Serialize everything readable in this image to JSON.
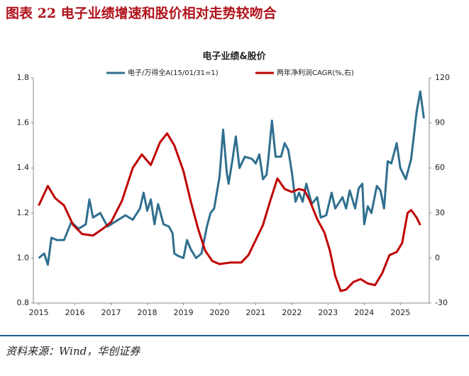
{
  "header": {
    "title": "图表 22   电子业绩增速和股价相对走势较吻合"
  },
  "source": "资料来源：Wind，华创证券",
  "chart_data": {
    "type": "line",
    "title": "电子业绩&股价",
    "xlim": [
      2014.85,
      2025.8
    ],
    "xticks": [
      2015,
      2016,
      2017,
      2018,
      2019,
      2020,
      2021,
      2022,
      2023,
      2024,
      2025
    ],
    "ylim": [
      0.8,
      1.8
    ],
    "yticks": [
      0.8,
      {
        "value": 1,
        "label": "1.0"
      },
      1.2,
      1.4,
      1.6,
      1.8
    ],
    "y2lim": [
      -30,
      120
    ],
    "y2ticks": [
      -30,
      0,
      30,
      60,
      90,
      120
    ],
    "grid": false,
    "series": [
      {
        "name": "电子/万得全A(15/01/31=1)",
        "color": "#2f6f8f",
        "x": [
          2015.0,
          2015.15,
          2015.25,
          2015.35,
          2015.5,
          2015.7,
          2015.9,
          2016.1,
          2016.3,
          2016.4,
          2016.5,
          2016.7,
          2016.9,
          2017.0,
          2017.2,
          2017.4,
          2017.6,
          2017.8,
          2017.9,
          2018.0,
          2018.1,
          2018.2,
          2018.3,
          2018.45,
          2018.6,
          2018.7,
          2018.75,
          2018.85,
          2019.0,
          2019.1,
          2019.2,
          2019.35,
          2019.5,
          2019.65,
          2019.75,
          2019.85,
          2020.0,
          2020.1,
          2020.2,
          2020.25,
          2020.35,
          2020.45,
          2020.55,
          2020.7,
          2020.9,
          2021.0,
          2021.1,
          2021.2,
          2021.3,
          2021.35,
          2021.45,
          2021.55,
          2021.7,
          2021.8,
          2021.9,
          2022.0,
          2022.1,
          2022.2,
          2022.3,
          2022.4,
          2022.55,
          2022.7,
          2022.8,
          2022.95,
          2023.1,
          2023.2,
          2023.4,
          2023.5,
          2023.6,
          2023.75,
          2023.85,
          2023.95,
          2024.0,
          2024.1,
          2024.2,
          2024.35,
          2024.45,
          2024.55,
          2024.65,
          2024.75,
          2024.9,
          2025.0,
          2025.15,
          2025.3,
          2025.45,
          2025.55,
          2025.65
        ],
        "values": [
          1.0,
          1.02,
          0.97,
          1.09,
          1.08,
          1.08,
          1.16,
          1.13,
          1.15,
          1.26,
          1.18,
          1.2,
          1.14,
          1.15,
          1.17,
          1.19,
          1.17,
          1.22,
          1.29,
          1.21,
          1.26,
          1.15,
          1.24,
          1.15,
          1.14,
          1.11,
          1.02,
          1.01,
          1.0,
          1.08,
          1.04,
          1.0,
          1.02,
          1.14,
          1.2,
          1.22,
          1.36,
          1.57,
          1.38,
          1.33,
          1.43,
          1.54,
          1.4,
          1.45,
          1.44,
          1.42,
          1.46,
          1.35,
          1.37,
          1.44,
          1.61,
          1.45,
          1.45,
          1.51,
          1.48,
          1.38,
          1.25,
          1.29,
          1.25,
          1.33,
          1.24,
          1.27,
          1.18,
          1.19,
          1.29,
          1.22,
          1.27,
          1.22,
          1.3,
          1.22,
          1.31,
          1.33,
          1.15,
          1.23,
          1.2,
          1.32,
          1.3,
          1.22,
          1.43,
          1.42,
          1.51,
          1.4,
          1.35,
          1.44,
          1.65,
          1.74,
          1.62
        ]
      },
      {
        "name": "两年净利润CAGR(%,右)",
        "color": "#c00000",
        "axis": "y2",
        "x": [
          2015.0,
          2015.25,
          2015.45,
          2015.7,
          2015.95,
          2016.2,
          2016.5,
          2016.8,
          2017.0,
          2017.3,
          2017.6,
          2017.85,
          2018.1,
          2018.35,
          2018.55,
          2018.75,
          2019.0,
          2019.2,
          2019.4,
          2019.6,
          2019.8,
          2020.0,
          2020.3,
          2020.6,
          2020.8,
          2021.0,
          2021.2,
          2021.4,
          2021.6,
          2021.8,
          2022.0,
          2022.2,
          2022.35,
          2022.5,
          2022.7,
          2022.9,
          2023.05,
          2023.2,
          2023.35,
          2023.5,
          2023.7,
          2023.9,
          2024.1,
          2024.3,
          2024.5,
          2024.7,
          2024.9,
          2025.05,
          2025.2,
          2025.3,
          2025.45,
          2025.55
        ],
        "values": [
          35,
          48,
          40,
          35,
          22,
          16,
          15,
          20,
          24,
          38,
          60,
          69,
          62,
          77,
          83,
          75,
          58,
          38,
          20,
          5,
          -2,
          -4,
          -3,
          -3,
          2,
          12,
          22,
          38,
          53,
          46,
          44,
          46,
          45,
          38,
          26,
          17,
          5,
          -12,
          -22,
          -21,
          -16,
          -14,
          -17,
          -18,
          -10,
          2,
          4,
          10,
          30,
          32,
          27,
          22
        ]
      }
    ]
  }
}
